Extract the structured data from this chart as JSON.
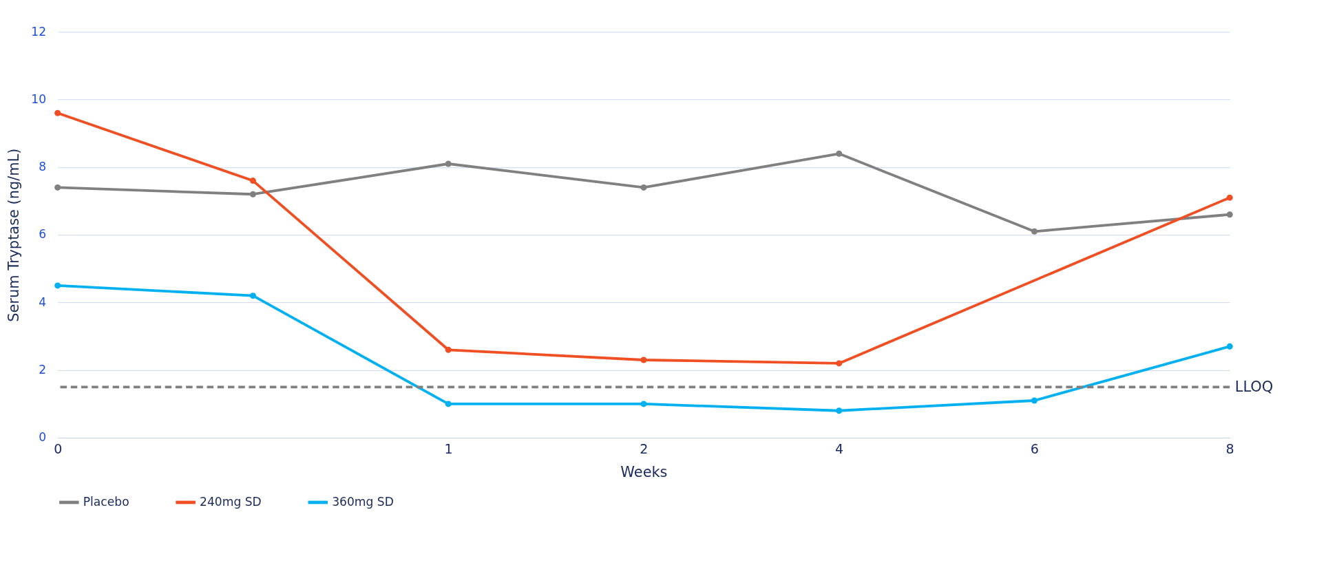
{
  "chart_data": {
    "type": "line",
    "xlabel": "Weeks",
    "ylabel": "Serum Tryptase (ng/mL)",
    "categories": [
      "0",
      null,
      "1",
      "2",
      "4",
      "6",
      "8"
    ],
    "series": [
      {
        "name": "Placebo",
        "color": "#808080",
        "values": [
          7.4,
          7.2,
          8.1,
          7.4,
          8.4,
          6.1,
          6.6
        ]
      },
      {
        "name": "240mg SD",
        "color": "#f04e23",
        "values": [
          9.6,
          7.6,
          2.6,
          2.3,
          2.2,
          null,
          7.1
        ]
      },
      {
        "name": "360mg SD",
        "color": "#00b0f0",
        "values": [
          4.5,
          4.2,
          1.0,
          1.0,
          0.8,
          1.1,
          2.7
        ]
      }
    ],
    "ylim": [
      0,
      12
    ],
    "yticks": [
      0,
      2,
      4,
      6,
      8,
      10,
      12
    ],
    "grid": "y",
    "legend": "bottom",
    "marker": "circle",
    "line_style": "solid",
    "ref_lines": [
      {
        "axis": "y",
        "value": 1.5,
        "label": "LLOQ",
        "color": "#808080",
        "line_style": "dashed"
      }
    ]
  }
}
